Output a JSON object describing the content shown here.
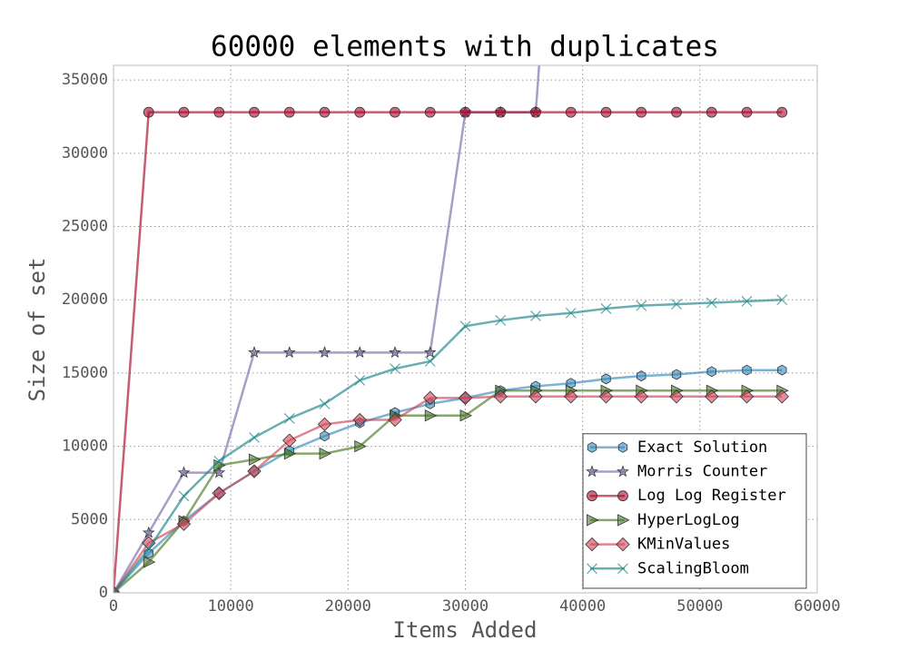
{
  "chart_data": {
    "type": "line",
    "title": "60000 elements with duplicates",
    "x_label": "Items Added",
    "y_label": "Size of set",
    "x": [
      0,
      3000,
      6000,
      9000,
      12000,
      15000,
      18000,
      21000,
      24000,
      27000,
      30000,
      33000,
      36000,
      39000,
      42000,
      45000,
      48000,
      51000,
      54000,
      57000
    ],
    "xlim": [
      0,
      60000
    ],
    "ylim": [
      0,
      36000
    ],
    "xticks": [
      0,
      10000,
      20000,
      30000,
      40000,
      50000,
      60000
    ],
    "yticks": [
      0,
      5000,
      10000,
      15000,
      20000,
      25000,
      30000,
      35000
    ],
    "grid": true,
    "legend": "lower right",
    "series": [
      {
        "name": "Exact Solution",
        "color": "#348abd",
        "marker": "hexagon",
        "values": [
          0,
          2700,
          4900,
          6800,
          8300,
          9700,
          10700,
          11600,
          12300,
          12900,
          13300,
          13800,
          14100,
          14300,
          14600,
          14800,
          14900,
          15100,
          15200,
          15200
        ]
      },
      {
        "name": "Morris Counter",
        "color": "#7a68a6",
        "marker": "star",
        "values": [
          0,
          4100,
          8200,
          8200,
          16400,
          16400,
          16400,
          16400,
          16400,
          16400,
          32800,
          32800,
          32800,
          65536,
          null,
          null,
          null,
          null,
          null,
          null
        ]
      },
      {
        "name": "Log Log Register",
        "color": "#a60628",
        "marker": "circle",
        "values": [
          0,
          32800,
          32800,
          32800,
          32800,
          32800,
          32800,
          32800,
          32800,
          32800,
          32800,
          32800,
          32800,
          32800,
          32800,
          32800,
          32800,
          32800,
          32800,
          32800
        ]
      },
      {
        "name": "HyperLogLog",
        "color": "#467821",
        "marker": "triangle-right",
        "values": [
          0,
          2100,
          4900,
          8700,
          9100,
          9500,
          9500,
          10000,
          12100,
          12100,
          12100,
          13800,
          13800,
          13800,
          13800,
          13800,
          13800,
          13800,
          13800,
          13800
        ]
      },
      {
        "name": "KMinValues",
        "color": "#cf4457",
        "marker": "diamond",
        "values": [
          0,
          3400,
          4700,
          6800,
          8300,
          10400,
          11500,
          11800,
          11800,
          13300,
          13300,
          13400,
          13400,
          13400,
          13400,
          13400,
          13400,
          13400,
          13400,
          13400
        ]
      },
      {
        "name": "ScalingBloom",
        "color": "#188487",
        "marker": "x",
        "values": [
          0,
          3000,
          6600,
          9000,
          10600,
          11900,
          12900,
          14500,
          15300,
          15800,
          18200,
          18600,
          18900,
          19100,
          19400,
          19600,
          19700,
          19800,
          19900,
          20000
        ]
      }
    ]
  }
}
